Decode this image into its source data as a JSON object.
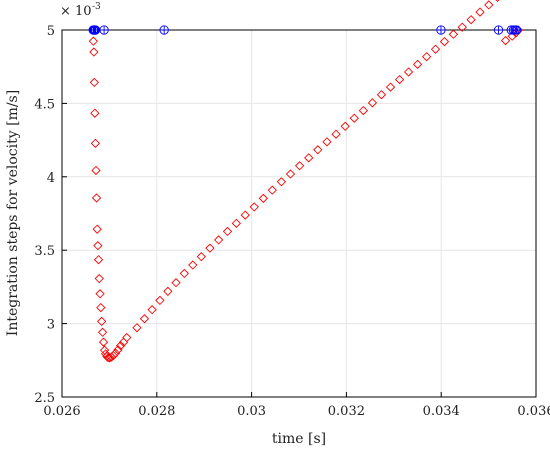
{
  "chart_data": {
    "type": "scatter",
    "title": "",
    "xlabel": "time [s]",
    "ylabel": "Integration steps for velocity [m/s]",
    "y_multiplier_label": "× 10",
    "y_multiplier_exponent": "-3",
    "xlim": [
      0.026,
      0.036
    ],
    "ylim": [
      2.5,
      5.0
    ],
    "x_ticks": [
      0.026,
      0.028,
      0.03,
      0.032,
      0.034,
      0.036
    ],
    "x_tick_labels": [
      "0.026",
      "0.028",
      "0.03",
      "0.032",
      "0.034",
      "0.036"
    ],
    "y_ticks": [
      2.5,
      3.0,
      3.5,
      4.0,
      4.5,
      5.0
    ],
    "y_tick_labels": [
      "2.5",
      "3",
      "3.5",
      "4",
      "4.5",
      "5"
    ],
    "grid": true,
    "legend": "none",
    "series": [
      {
        "marker": "diamond",
        "color": "#ff0000",
        "x": [
          0.026662,
          0.026672,
          0.026682,
          0.026693,
          0.026705,
          0.026717,
          0.026729,
          0.026742,
          0.026757,
          0.026771,
          0.026786,
          0.026803,
          0.026819,
          0.026837,
          0.026856,
          0.026876,
          0.026898,
          0.026921,
          0.026947,
          0.026975,
          0.027007,
          0.027043,
          0.027084,
          0.02713,
          0.027182,
          0.027237,
          0.027298,
          0.027367,
          0.027581,
          0.02774,
          0.027901,
          0.028066,
          0.028234,
          0.028406,
          0.028581,
          0.028759,
          0.028939,
          0.029121,
          0.029305,
          0.029492,
          0.029678,
          0.029866,
          0.030056,
          0.030247,
          0.030437,
          0.030629,
          0.030821,
          0.031013,
          0.031205,
          0.031397,
          0.031589,
          0.031781,
          0.031975,
          0.032166,
          0.032358,
          0.032549,
          0.03274,
          0.032931,
          0.033122,
          0.033312,
          0.033502,
          0.033692,
          0.03388,
          0.034069,
          0.034257,
          0.034444,
          0.034631,
          0.034818,
          0.035004,
          0.035189,
          0.035358,
          0.035498,
          0.035577,
          0.03563
        ],
        "y": [
          4.924,
          4.85,
          4.643,
          4.433,
          4.228,
          4.043,
          3.856,
          3.643,
          3.531,
          3.435,
          3.307,
          3.203,
          3.109,
          3.015,
          2.941,
          2.874,
          2.819,
          2.794,
          2.776,
          2.768,
          2.767,
          2.772,
          2.782,
          2.799,
          2.822,
          2.85,
          2.873,
          2.905,
          2.972,
          3.033,
          3.095,
          3.158,
          3.22,
          3.279,
          3.342,
          3.399,
          3.456,
          3.514,
          3.57,
          3.628,
          3.683,
          3.739,
          3.795,
          3.853,
          3.909,
          3.966,
          4.019,
          4.075,
          4.129,
          4.184,
          4.238,
          4.29,
          4.344,
          4.399,
          4.451,
          4.504,
          4.559,
          4.611,
          4.662,
          4.714,
          4.766,
          4.818,
          4.869,
          4.921,
          4.971,
          5.019,
          5.07,
          5.122,
          5.171,
          5.222,
          4.928,
          4.958,
          4.98,
          4.999
        ]
      },
      {
        "marker": "circle-plus",
        "color": "#0000ff",
        "x": [
          0.026659,
          0.026668,
          0.026677,
          0.026689,
          0.026698,
          0.026708,
          0.026888,
          0.028155,
          0.033995,
          0.03521,
          0.035478,
          0.035522,
          0.035562,
          0.03559
        ],
        "y": [
          5.0,
          5.0,
          5.0,
          5.0,
          5.0,
          5.0,
          5.0,
          5.0,
          5.0,
          5.0,
          5.0,
          5.0,
          5.0,
          5.0
        ]
      }
    ]
  }
}
